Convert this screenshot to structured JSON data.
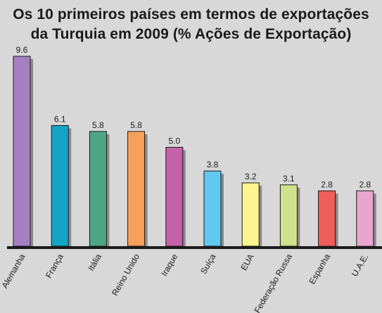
{
  "chart_data": {
    "type": "bar",
    "title_line_1": "Os 10 primeiros países em termos de exportações",
    "title_line_2": "da Turquia em 2009 (% Ações de Exportação)",
    "categories": [
      "Alemanha",
      "França",
      "Itália",
      "Reino Unido",
      "Iraque",
      "Suíça",
      "EUA",
      "Federação Russa",
      "Espanha",
      "U.A.E."
    ],
    "values": [
      9.6,
      6.1,
      5.8,
      5.8,
      5.0,
      3.8,
      3.2,
      3.1,
      2.8,
      2.8
    ],
    "value_labels": [
      "9.6",
      "6.1",
      "5.8",
      "5.8",
      "5.0",
      "3.8",
      "3.2",
      "3.1",
      "2.8",
      "2.8"
    ],
    "colors": [
      "#a67fc3",
      "#14a3c4",
      "#4da585",
      "#f7a05a",
      "#c561a8",
      "#62c8f0",
      "#faf58e",
      "#cfe18a",
      "#f05e58",
      "#e8a6cf"
    ],
    "shadow_color": "#8a8a8a",
    "axis_color": "#1a1a1a",
    "background_color": "#d8d8d8",
    "xlabel": "",
    "ylabel": "",
    "ylim": [
      0,
      9.6
    ],
    "grid": false,
    "legend": "none"
  }
}
